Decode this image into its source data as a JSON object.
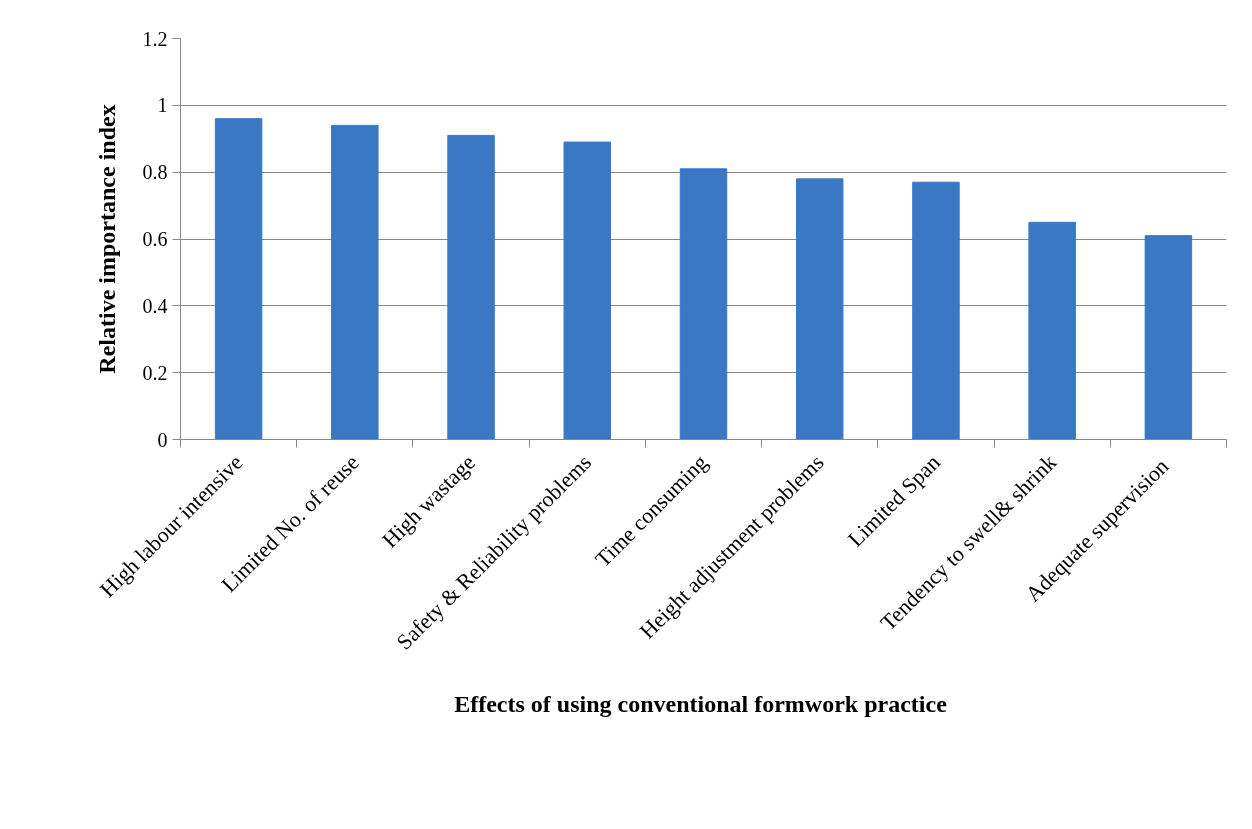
{
  "chart_data": {
    "type": "bar",
    "xlabel": "Effects of using conventional  formwork practice",
    "ylabel": "Relative importance index",
    "categories": [
      "High labour intensive",
      "Limited No. of reuse",
      "High wastage",
      "Safety & Reliability problems",
      "Time consuming",
      "Height adjustment problems",
      "Limited Span",
      "Tendency to swell& shrink",
      "Adequate  supervision"
    ],
    "values": [
      0.96,
      0.94,
      0.91,
      0.89,
      0.81,
      0.78,
      0.77,
      0.65,
      0.61
    ],
    "color": "#3a78c6",
    "ylim": [
      0,
      1.2
    ],
    "yticks": [
      0,
      0.2,
      0.4,
      0.6,
      0.8,
      1,
      1.2
    ],
    "grid": "y"
  }
}
